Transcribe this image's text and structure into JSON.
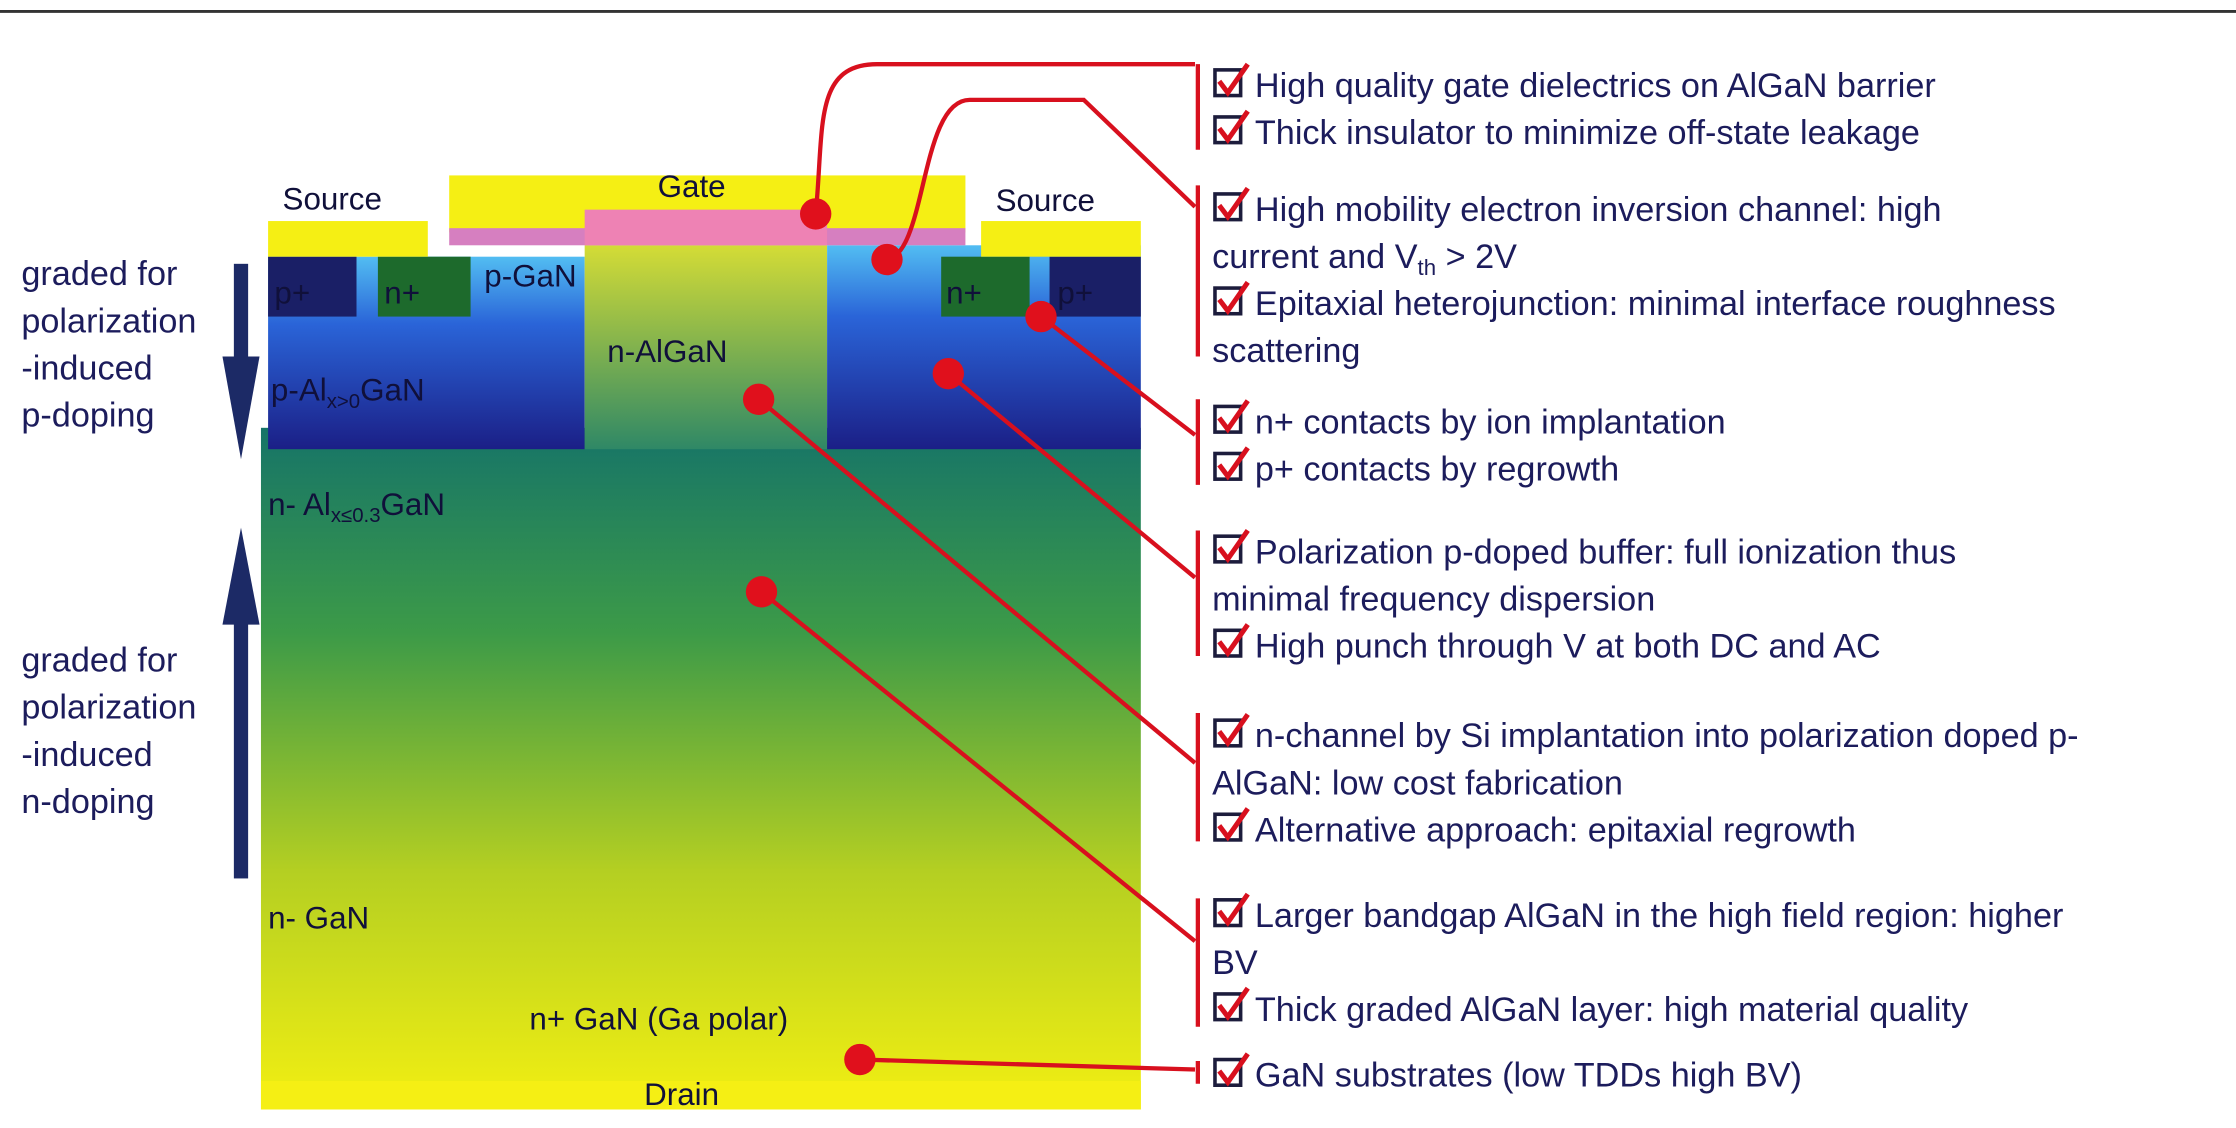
{
  "device_labels": [
    "Source",
    "Gate",
    "Source",
    "p+",
    "n+",
    "p-GaN",
    "n-AlGaN",
    "n+",
    "p+",
    [
      "p-Al",
      {
        "sub": "x>0"
      },
      "GaN"
    ],
    [
      "n- Al",
      {
        "sub": "x≤0.3"
      },
      "GaN"
    ],
    "n- GaN",
    "n+ GaN (Ga polar)",
    "Drain"
  ],
  "side_notes": [
    [
      "graded for",
      "polarization",
      "-induced",
      "p-doping"
    ],
    [
      "graded for",
      "polarization",
      "-induced",
      "n-doping"
    ]
  ],
  "features": [
    [
      [
        "High quality gate dielectrics on AlGaN barrier"
      ],
      [
        "Thick insulator to minimize off-state leakage"
      ]
    ],
    [
      [
        "High mobility electron inversion channel: high",
        [
          "current and V",
          {
            "sub": "th"
          },
          " > 2V"
        ]
      ],
      [
        "Epitaxial heterojunction: minimal interface roughness",
        "scattering"
      ]
    ],
    [
      [
        "n+ contacts by ion implantation"
      ],
      [
        "p+ contacts by regrowth"
      ]
    ],
    [
      [
        "Polarization p-doped buffer: full ionization thus",
        "minimal frequency dispersion"
      ],
      [
        "High punch through V at both DC and AC"
      ]
    ],
    [
      [
        "n-channel by Si implantation into polarization doped p-",
        "AlGaN: low cost fabrication"
      ],
      [
        "Alternative approach: epitaxial regrowth"
      ]
    ],
    [
      [
        "Larger bandgap AlGaN in the high field region: higher",
        "BV"
      ],
      [
        "Thick graded AlGaN layer: high material quality"
      ]
    ],
    [
      [
        "GaN substrates (low TDDs high BV)"
      ]
    ]
  ]
}
